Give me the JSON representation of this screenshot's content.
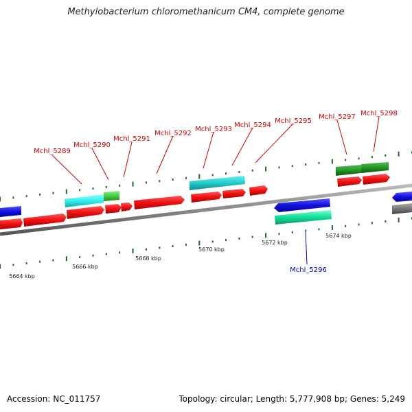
{
  "title": "Methylobacterium chloromethanicum CM4, complete genome",
  "footer": {
    "accession": "Accession: NC_011757",
    "summary": "Topology: circular; Length: 5,777,908 bp; Genes: 5,249"
  },
  "colors": {
    "forward_cds": "#ee1111",
    "reverse_cds": "#1111dd",
    "cyan_feature": "#22cccc",
    "green_feature": "#229922",
    "light_green_feature": "#44cc44",
    "aqua_feature": "#11dd99",
    "gray_feature": "#777777",
    "forward_label": "#cc0000",
    "reverse_label": "#0000bb",
    "tick": "#226622",
    "backbone": "#888888"
  },
  "scale_labels": [
    "5664 kbp",
    "5666 kbp",
    "5668 kbp",
    "5670 kbp",
    "5672 kbp",
    "5674 kbp"
  ],
  "gene_labels": [
    {
      "name": "Mchl_5289",
      "strand": "forward"
    },
    {
      "name": "Mchl_5290",
      "strand": "forward"
    },
    {
      "name": "Mchl_5291",
      "strand": "forward"
    },
    {
      "name": "Mchl_5292",
      "strand": "forward"
    },
    {
      "name": "Mchl_5293",
      "strand": "forward"
    },
    {
      "name": "Mchl_5294",
      "strand": "forward"
    },
    {
      "name": "Mchl_5295",
      "strand": "forward"
    },
    {
      "name": "Mchl_5297",
      "strand": "forward"
    },
    {
      "name": "Mchl_5298",
      "strand": "forward"
    },
    {
      "name": "Mchl_5296",
      "strand": "reverse"
    }
  ]
}
